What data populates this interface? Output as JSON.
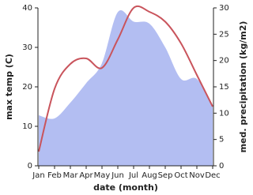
{
  "chart_data": {
    "type": "line",
    "x_label": "date (month)",
    "y_label": "max temp (C)",
    "y2_label": "med. precipitation (kg/m2)",
    "categories": [
      "Jan",
      "Feb",
      "Mar",
      "Apr",
      "May",
      "Jun",
      "Jul",
      "Aug",
      "Sep",
      "Oct",
      "Nov",
      "Dec"
    ],
    "series": [
      {
        "name": "med. precipitation",
        "kind": "area",
        "axis": "y2",
        "color": "#b3bef2",
        "values": [
          9.6,
          9,
          12,
          15.7,
          19.5,
          29.2,
          27.4,
          27,
          22.5,
          16.5,
          16.5,
          11.5
        ]
      },
      {
        "name": "max temp",
        "kind": "line",
        "color": "#c9545c",
        "values": [
          3.6,
          19.5,
          25.8,
          27.2,
          24.8,
          32,
          40,
          39,
          36.5,
          31,
          23,
          15
        ]
      }
    ],
    "ylim": [
      0,
      40
    ],
    "yticks": [
      0,
      10,
      20,
      30,
      40
    ],
    "y2lim": [
      0,
      30
    ],
    "y2ticks": [
      0,
      5,
      10,
      15,
      20,
      25,
      30
    ]
  }
}
